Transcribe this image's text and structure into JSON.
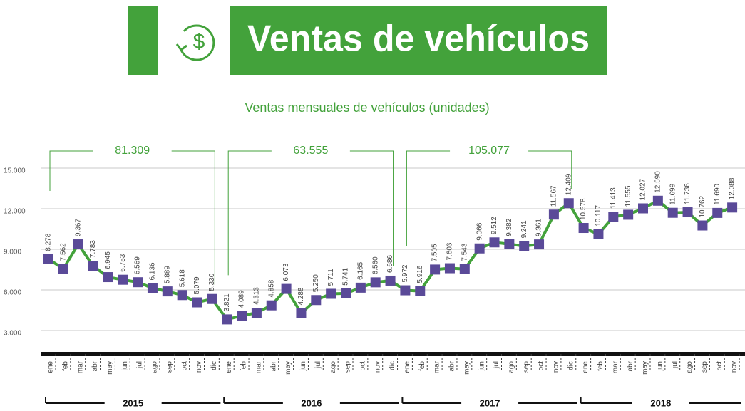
{
  "chart_data": {
    "type": "line",
    "title": "Ventas de vehículos",
    "subtitle": "Ventas mensuales de vehículos  (unidades)",
    "categories": [
      "ene",
      "feb",
      "mar",
      "abr",
      "may",
      "jun",
      "jul",
      "ago",
      "sep",
      "oct",
      "nov",
      "dic",
      "ene",
      "feb",
      "mar",
      "abr",
      "may",
      "jun",
      "jul",
      "ago",
      "sep",
      "oct",
      "nov",
      "dic",
      "ene",
      "feb",
      "mar",
      "abr",
      "may",
      "jun",
      "jul",
      "ago",
      "sep",
      "oct",
      "nov",
      "dic",
      "ene",
      "feb",
      "mar",
      "abr",
      "may",
      "jun",
      "jul",
      "ago",
      "sep",
      "oct",
      "nov"
    ],
    "values": [
      8278,
      7562,
      9367,
      7783,
      6945,
      6753,
      6569,
      6136,
      5889,
      5618,
      5079,
      5330,
      3821,
      4089,
      4313,
      4858,
      6073,
      4288,
      5250,
      5711,
      5741,
      6165,
      6560,
      6686,
      5972,
      5916,
      7505,
      7603,
      7543,
      9066,
      9512,
      9382,
      9241,
      9361,
      11567,
      12409,
      10578,
      10117,
      11413,
      11555,
      12027,
      12590,
      11699,
      11736,
      10762,
      11690,
      12088
    ],
    "value_labels": [
      "8.278",
      "7.562",
      "9.367",
      "7.783",
      "6.945",
      "6.753",
      "6.569",
      "6.136",
      "5.889",
      "5.618",
      "5.079",
      "5.330",
      "3.821",
      "4.089",
      "4.313",
      "4.858",
      "6.073",
      "4.288",
      "5.250",
      "5.711",
      "5.741",
      "6.165",
      "6.560",
      "6.686",
      "5.972",
      "5.916",
      "7.505",
      "7.603",
      "7.543",
      "9.066",
      "9.512",
      "9.382",
      "9.241",
      "9.361",
      "11.567",
      "12.409",
      "10.578",
      "10.117",
      "11.413",
      "11.555",
      "12.027",
      "12.590",
      "11.699",
      "11.736",
      "10.762",
      "11.690",
      "12.088"
    ],
    "groups": [
      "2015",
      "2016",
      "2017",
      "2018"
    ],
    "annotations": [
      "81.309",
      "63.555",
      "105.077"
    ],
    "color": "#43a23b",
    "marker_color": "#5a4a98",
    "ylim": [
      1000,
      16000
    ],
    "yticks": [
      {
        "value": 3000,
        "label": "3.000"
      },
      {
        "value": 6000,
        "label": "6.000"
      },
      {
        "value": 9000,
        "label": "9.000"
      },
      {
        "value": 12000,
        "label": "12.000"
      },
      {
        "value": 15000,
        "label": "15.000"
      }
    ],
    "grid": true
  }
}
